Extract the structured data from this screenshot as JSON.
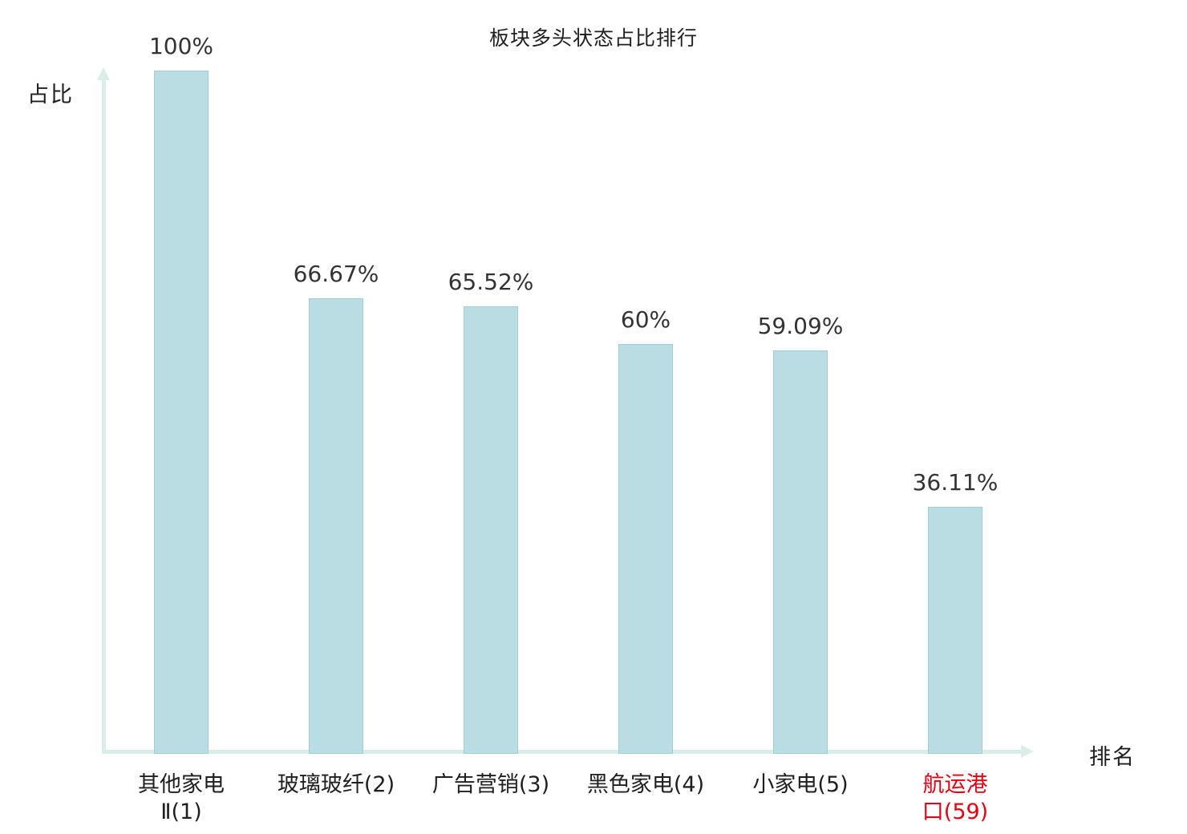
{
  "chart_data": {
    "type": "bar",
    "title": "板块多头状态占比排行",
    "xlabel": "排名",
    "ylabel": "占比",
    "ylim": [
      0,
      100
    ],
    "grid": false,
    "legend": "none",
    "categories": [
      "其他家电\nⅡ(1)",
      "玻璃玻纤(2)",
      "广告营销(3)",
      "黑色家电(4)",
      "小家电(5)",
      "航运港口(59)"
    ],
    "values": [
      100,
      66.67,
      65.52,
      60,
      59.09,
      36.11
    ],
    "value_labels": [
      "100%",
      "66.67%",
      "65.52%",
      "60%",
      "59.09%",
      "36.11%"
    ],
    "highlight_index": 5,
    "colors": {
      "bar_fill": "#b9dde2",
      "bar_border": "#9ecfd7",
      "axis": "#d9eeea",
      "text": "#1f1f1f",
      "value_text": "#333333",
      "highlight_text": "#e60012"
    }
  }
}
